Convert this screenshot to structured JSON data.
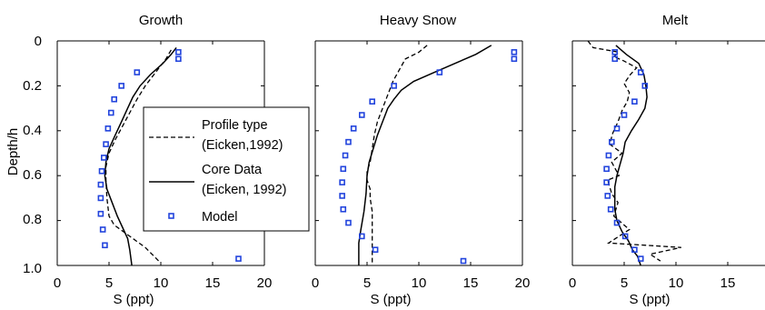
{
  "chart_data": [
    {
      "type": "line",
      "title": "Growth",
      "xlabel": "S (ppt)",
      "ylabel": "Depth/h",
      "xlim": [
        0,
        20
      ],
      "ylim": [
        0,
        1.0
      ],
      "y_inverted": true,
      "xticks": [
        "0",
        "5",
        "10",
        "15",
        "20"
      ],
      "yticks": [
        "0",
        "0.2",
        "0.4",
        "0.6",
        "0.8",
        "1.0"
      ],
      "series": [
        {
          "name": "Profile type (Eicken,1992)",
          "style": "dashed",
          "points": [
            [
              11.0,
              0.04
            ],
            [
              10.5,
              0.08
            ],
            [
              9.5,
              0.14
            ],
            [
              8.5,
              0.2
            ],
            [
              7.7,
              0.26
            ],
            [
              7.0,
              0.32
            ],
            [
              6.3,
              0.38
            ],
            [
              5.6,
              0.44
            ],
            [
              5.0,
              0.5
            ],
            [
              4.7,
              0.56
            ],
            [
              4.7,
              0.62
            ],
            [
              4.8,
              0.7
            ],
            [
              5.0,
              0.78
            ],
            [
              5.5,
              0.82
            ],
            [
              7.0,
              0.87
            ],
            [
              8.5,
              0.92
            ],
            [
              9.8,
              0.98
            ]
          ]
        },
        {
          "name": "Core Data (Eicken, 1992)",
          "style": "solid",
          "points": [
            [
              11.5,
              0.03
            ],
            [
              11.0,
              0.06
            ],
            [
              10.2,
              0.1
            ],
            [
              9.0,
              0.15
            ],
            [
              8.0,
              0.2
            ],
            [
              7.3,
              0.25
            ],
            [
              6.8,
              0.3
            ],
            [
              6.2,
              0.36
            ],
            [
              5.6,
              0.42
            ],
            [
              5.0,
              0.48
            ],
            [
              4.7,
              0.54
            ],
            [
              4.6,
              0.6
            ],
            [
              4.8,
              0.66
            ],
            [
              5.3,
              0.72
            ],
            [
              5.8,
              0.78
            ],
            [
              6.3,
              0.83
            ],
            [
              6.8,
              0.88
            ],
            [
              7.0,
              0.93
            ],
            [
              7.2,
              1.0
            ]
          ]
        },
        {
          "name": "Model",
          "style": "marker",
          "points": [
            [
              11.7,
              0.05
            ],
            [
              11.7,
              0.08
            ],
            [
              7.7,
              0.14
            ],
            [
              6.2,
              0.2
            ],
            [
              5.5,
              0.26
            ],
            [
              5.2,
              0.32
            ],
            [
              4.9,
              0.39
            ],
            [
              4.7,
              0.46
            ],
            [
              4.5,
              0.52
            ],
            [
              4.3,
              0.58
            ],
            [
              4.2,
              0.64
            ],
            [
              4.2,
              0.7
            ],
            [
              4.2,
              0.77
            ],
            [
              4.4,
              0.84
            ],
            [
              4.6,
              0.91
            ],
            [
              17.5,
              0.97
            ]
          ]
        }
      ]
    },
    {
      "type": "line",
      "title": "Heavy Snow",
      "xlabel": "S (ppt)",
      "xlim": [
        0,
        20
      ],
      "ylim": [
        0,
        1.0
      ],
      "y_inverted": true,
      "xticks": [
        "0",
        "5",
        "10",
        "15",
        "20"
      ],
      "series": [
        {
          "name": "Profile type (Eicken,1992)",
          "style": "dashed",
          "points": [
            [
              10.8,
              0.02
            ],
            [
              10.0,
              0.05
            ],
            [
              8.7,
              0.08
            ],
            [
              7.5,
              0.18
            ],
            [
              7.0,
              0.24
            ],
            [
              6.5,
              0.3
            ],
            [
              6.0,
              0.36
            ],
            [
              5.7,
              0.42
            ],
            [
              5.5,
              0.48
            ],
            [
              5.3,
              0.54
            ],
            [
              5.0,
              0.58
            ],
            [
              5.0,
              0.62
            ],
            [
              5.3,
              0.66
            ],
            [
              5.3,
              0.7
            ],
            [
              5.5,
              0.76
            ],
            [
              5.5,
              0.82
            ],
            [
              5.5,
              0.88
            ],
            [
              5.5,
              1.0
            ]
          ]
        },
        {
          "name": "Core Data (Eicken, 1992)",
          "style": "solid",
          "points": [
            [
              17.0,
              0.02
            ],
            [
              15.5,
              0.06
            ],
            [
              13.5,
              0.1
            ],
            [
              11.5,
              0.14
            ],
            [
              9.5,
              0.18
            ],
            [
              8.3,
              0.22
            ],
            [
              7.6,
              0.26
            ],
            [
              7.0,
              0.3
            ],
            [
              6.5,
              0.36
            ],
            [
              6.0,
              0.42
            ],
            [
              5.6,
              0.48
            ],
            [
              5.2,
              0.54
            ],
            [
              5.0,
              0.6
            ],
            [
              4.9,
              0.68
            ],
            [
              4.7,
              0.76
            ],
            [
              4.4,
              0.84
            ],
            [
              4.2,
              0.9
            ],
            [
              4.2,
              1.0
            ]
          ]
        },
        {
          "name": "Model",
          "style": "marker",
          "points": [
            [
              19.2,
              0.05
            ],
            [
              19.2,
              0.08
            ],
            [
              12.0,
              0.14
            ],
            [
              7.6,
              0.2
            ],
            [
              5.5,
              0.27
            ],
            [
              4.5,
              0.33
            ],
            [
              3.7,
              0.39
            ],
            [
              3.2,
              0.45
            ],
            [
              2.9,
              0.51
            ],
            [
              2.7,
              0.57
            ],
            [
              2.6,
              0.63
            ],
            [
              2.6,
              0.69
            ],
            [
              2.7,
              0.75
            ],
            [
              3.2,
              0.81
            ],
            [
              4.5,
              0.87
            ],
            [
              5.8,
              0.93
            ],
            [
              14.3,
              0.98
            ]
          ]
        }
      ]
    },
    {
      "type": "line",
      "title": "Melt",
      "xlabel": "S (ppt)",
      "xlim": [
        0,
        20
      ],
      "ylim": [
        0,
        1.0
      ],
      "y_inverted": true,
      "xticks": [
        "0",
        "5",
        "10",
        "15"
      ],
      "series": [
        {
          "name": "Profile type (Eicken,1992)",
          "style": "dashed",
          "points": [
            [
              1.5,
              0.0
            ],
            [
              2.0,
              0.03
            ],
            [
              4.5,
              0.05
            ],
            [
              4.0,
              0.07
            ],
            [
              5.0,
              0.09
            ],
            [
              6.2,
              0.12
            ],
            [
              5.6,
              0.15
            ],
            [
              5.0,
              0.19
            ],
            [
              5.5,
              0.23
            ],
            [
              5.3,
              0.27
            ],
            [
              4.8,
              0.31
            ],
            [
              4.4,
              0.36
            ],
            [
              3.9,
              0.41
            ],
            [
              3.6,
              0.46
            ],
            [
              4.8,
              0.5
            ],
            [
              3.8,
              0.54
            ],
            [
              4.5,
              0.6
            ],
            [
              3.4,
              0.62
            ],
            [
              3.8,
              0.68
            ],
            [
              4.4,
              0.72
            ],
            [
              4.0,
              0.78
            ],
            [
              5.5,
              0.84
            ],
            [
              3.5,
              0.9
            ],
            [
              10.5,
              0.92
            ],
            [
              7.5,
              0.95
            ],
            [
              8.5,
              0.98
            ]
          ]
        },
        {
          "name": "Core Data (Eicken, 1992)",
          "style": "solid",
          "points": [
            [
              4.2,
              0.02
            ],
            [
              5.2,
              0.06
            ],
            [
              6.4,
              0.1
            ],
            [
              6.9,
              0.15
            ],
            [
              7.1,
              0.2
            ],
            [
              7.2,
              0.25
            ],
            [
              7.0,
              0.3
            ],
            [
              6.4,
              0.35
            ],
            [
              5.7,
              0.4
            ],
            [
              5.1,
              0.45
            ],
            [
              4.9,
              0.5
            ],
            [
              4.6,
              0.55
            ],
            [
              4.3,
              0.6
            ],
            [
              4.1,
              0.65
            ],
            [
              4.1,
              0.7
            ],
            [
              4.1,
              0.75
            ],
            [
              4.3,
              0.8
            ],
            [
              4.8,
              0.85
            ],
            [
              5.4,
              0.89
            ],
            [
              5.8,
              0.93
            ],
            [
              6.3,
              0.96
            ],
            [
              6.6,
              1.0
            ]
          ]
        },
        {
          "name": "Model",
          "style": "marker",
          "points": [
            [
              4.1,
              0.05
            ],
            [
              4.1,
              0.08
            ],
            [
              6.6,
              0.14
            ],
            [
              7.0,
              0.2
            ],
            [
              6.0,
              0.27
            ],
            [
              5.0,
              0.33
            ],
            [
              4.3,
              0.39
            ],
            [
              3.8,
              0.45
            ],
            [
              3.5,
              0.51
            ],
            [
              3.3,
              0.57
            ],
            [
              3.3,
              0.63
            ],
            [
              3.4,
              0.69
            ],
            [
              3.7,
              0.75
            ],
            [
              4.3,
              0.81
            ],
            [
              5.1,
              0.87
            ],
            [
              6.0,
              0.93
            ],
            [
              6.6,
              0.97
            ]
          ]
        }
      ]
    }
  ],
  "legend": {
    "entries": [
      {
        "line1": "Profile type",
        "line2": "(Eicken,1992)",
        "style": "dashed"
      },
      {
        "line1": "Core Data",
        "line2": "(Eicken, 1992)",
        "style": "solid"
      },
      {
        "line1": "Model",
        "line2": "",
        "style": "marker"
      }
    ]
  },
  "colors": {
    "line": "#000000",
    "marker": "#2244dd"
  }
}
